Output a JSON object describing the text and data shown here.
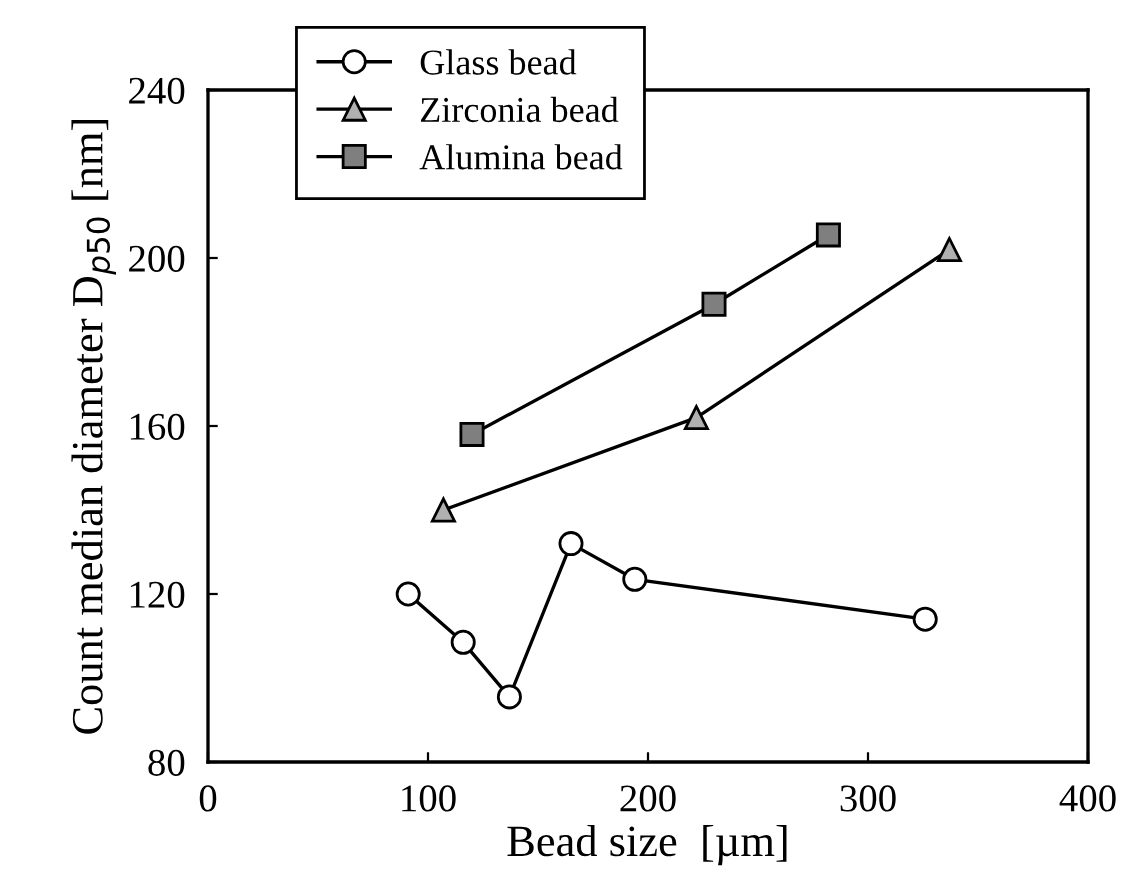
{
  "chart_data": {
    "type": "line",
    "xlabel": "Bead size  [µm]",
    "ylabel": "Count median diameter D$_{p50}$ [nm]",
    "xlim": [
      0,
      400
    ],
    "xticks": [
      0,
      100,
      200,
      300,
      400
    ],
    "ylim": [
      80,
      240
    ],
    "yticks": [
      80,
      120,
      160,
      200,
      240
    ],
    "grid": false,
    "legend": "top left",
    "line_style": "solid",
    "series": [
      {
        "name": "Glass bead",
        "color": "#ffffff",
        "marker": "circle",
        "x": [
          91,
          116,
          137,
          165,
          194,
          326
        ],
        "values": [
          120,
          108.5,
          95.5,
          132,
          123.5,
          114
        ]
      },
      {
        "name": "Zirconia bead",
        "color": "#b0b0b0",
        "marker": "triangle",
        "x": [
          107,
          222,
          337
        ],
        "values": [
          140,
          162,
          202
        ]
      },
      {
        "name": "Alumina bead",
        "color": "#7f7f7f",
        "marker": "square",
        "x": [
          120,
          230,
          282
        ],
        "values": [
          158,
          189,
          205.5
        ]
      }
    ]
  }
}
